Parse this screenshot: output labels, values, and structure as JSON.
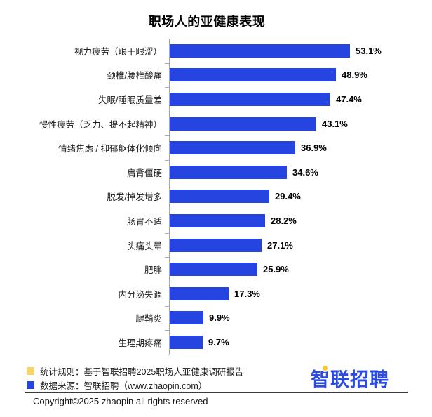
{
  "title": "职场人的亚健康表现",
  "chart_data": {
    "type": "bar",
    "orientation": "horizontal",
    "title": "职场人的亚健康表现",
    "xlabel": "",
    "ylabel": "",
    "xlim": [
      0,
      55
    ],
    "grid": false,
    "bar_color": "#2544e0",
    "axis_color": "#a6a6a6",
    "categories": [
      "视力疲劳（眼干眼涩）",
      "颈椎/腰椎酸痛",
      "失眠/睡眠质量差",
      "慢性疲劳（乏力、提不起精神）",
      "情绪焦虑 / 抑郁躯体化倾向",
      "肩背僵硬",
      "脱发/掉发增多",
      "肠胃不适",
      "头痛头晕",
      "肥胖",
      "内分泌失调",
      "腱鞘炎",
      "生理期疼痛"
    ],
    "values": [
      53.1,
      48.9,
      47.4,
      43.1,
      36.9,
      34.6,
      29.4,
      28.2,
      27.1,
      25.9,
      17.3,
      9.9,
      9.7
    ],
    "value_labels": [
      "53.1%",
      "48.9%",
      "47.4%",
      "43.1%",
      "36.9%",
      "34.6%",
      "29.4%",
      "28.2%",
      "27.1%",
      "25.9%",
      "17.3%",
      "9.9%",
      "9.7%"
    ]
  },
  "legend": {
    "items": [
      {
        "label": "统计规则：基于智联招聘2025职场人亚健康调研报告",
        "color": "#f8d466"
      },
      {
        "label": "数据来源：智联招聘（www.zhaopin.com）",
        "color": "#2544e0"
      }
    ]
  },
  "logo": {
    "text": "智联招聘",
    "accent_color": "#ffc524",
    "text_color": "#2a4be5"
  },
  "footer": {
    "copyright": "Copyright©2025 zhaopin all rights reserved"
  }
}
